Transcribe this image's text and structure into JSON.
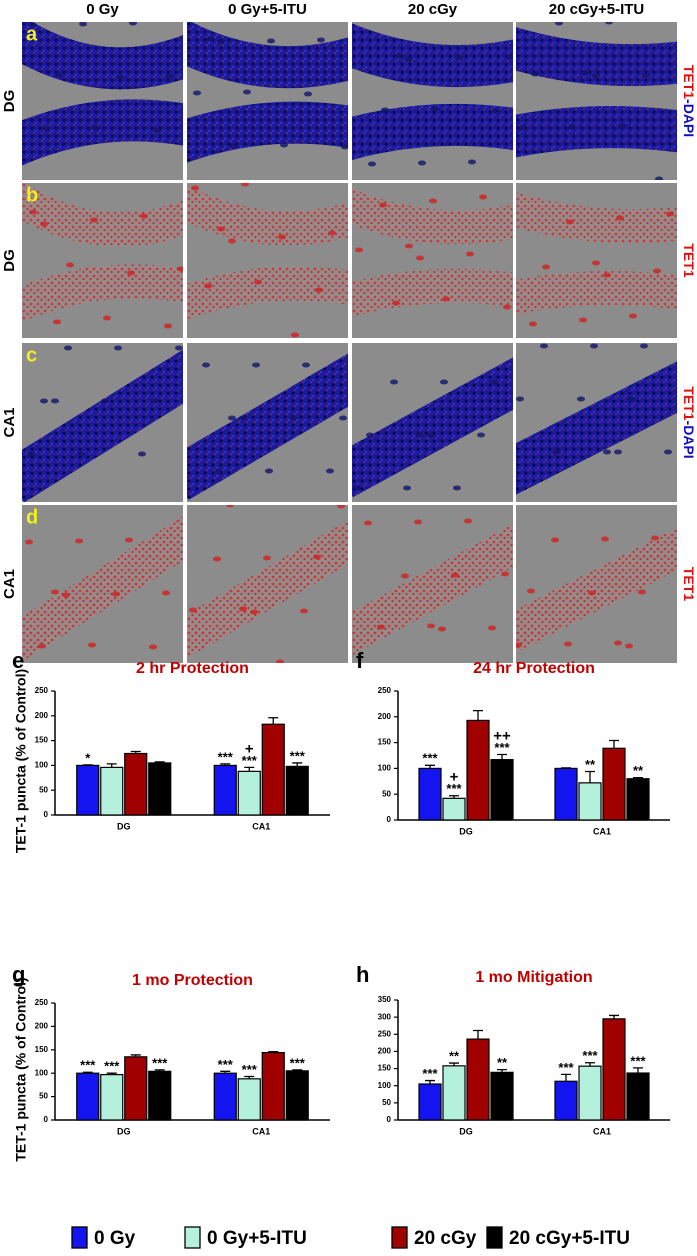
{
  "image_grid": {
    "columns": [
      "0 Gy",
      "0 Gy+5-ITU",
      "20 cGy",
      "20 cGy+5-ITU"
    ],
    "rows": [
      {
        "letter": "a",
        "region": "DG",
        "stain": [
          {
            "text": "TET1",
            "color": "#e01010"
          },
          {
            "text": "-DAPI",
            "color": "#1010c0"
          }
        ]
      },
      {
        "letter": "b",
        "region": "DG",
        "stain": [
          {
            "text": "TET1",
            "color": "#e01010"
          }
        ]
      },
      {
        "letter": "c",
        "region": "CA1",
        "stain": [
          {
            "text": "TET1",
            "color": "#e01010"
          },
          {
            "text": "-DAPI",
            "color": "#1010c0"
          }
        ]
      },
      {
        "letter": "d",
        "region": "CA1",
        "stain": [
          {
            "text": "TET1",
            "color": "#e01010"
          }
        ]
      }
    ]
  },
  "chart_data": [
    {
      "type": "bar",
      "letter": "e",
      "title": "2 hr Protection",
      "ylabel": "TET-1 puncta (% of Control)",
      "categories": [
        "DG",
        "CA1"
      ],
      "ylim": [
        0,
        250
      ],
      "yticks": [
        0,
        50,
        100,
        150,
        200,
        250
      ],
      "series": [
        {
          "name": "0 Gy",
          "color": "#1414f0",
          "values": [
            100,
            100
          ],
          "errors": [
            1,
            3
          ],
          "annotations": [
            [
              "*"
            ],
            [
              "***"
            ]
          ]
        },
        {
          "name": "0 Gy+5-ITU",
          "color": "#b4f0dc",
          "values": [
            96,
            88
          ],
          "errors": [
            7,
            8
          ],
          "annotations": [
            [],
            [
              "+",
              "***"
            ]
          ]
        },
        {
          "name": "20 cGy",
          "color": "#a00000",
          "values": [
            124,
            183
          ],
          "errors": [
            4,
            13
          ],
          "annotations": [
            [],
            []
          ]
        },
        {
          "name": "20 cGy+5-ITU",
          "color": "#000000",
          "values": [
            105,
            98
          ],
          "errors": [
            2,
            7
          ],
          "annotations": [
            [],
            [
              "***"
            ]
          ]
        }
      ]
    },
    {
      "type": "bar",
      "letter": "f",
      "title": "24 hr Protection",
      "categories": [
        "DG",
        "CA1"
      ],
      "ylim": [
        0,
        250
      ],
      "yticks": [
        0,
        50,
        100,
        150,
        200,
        250
      ],
      "series": [
        {
          "color": "#1414f0",
          "values": [
            100,
            100
          ],
          "errors": [
            6,
            1
          ],
          "annotations": [
            [
              "***"
            ],
            []
          ]
        },
        {
          "color": "#b4f0dc",
          "values": [
            42,
            72
          ],
          "errors": [
            5,
            22
          ],
          "annotations": [
            [
              "+",
              "***"
            ],
            [
              "**"
            ]
          ]
        },
        {
          "color": "#a00000",
          "values": [
            193,
            139
          ],
          "errors": [
            19,
            15
          ],
          "annotations": [
            [],
            []
          ]
        },
        {
          "color": "#000000",
          "values": [
            117,
            80
          ],
          "errors": [
            10,
            2
          ],
          "annotations": [
            [
              "++",
              "***"
            ],
            [
              "**"
            ]
          ]
        }
      ]
    },
    {
      "type": "bar",
      "letter": "g",
      "title": "1 mo Protection",
      "ylabel": "TET-1 puncta (% of Control)",
      "categories": [
        "DG",
        "CA1"
      ],
      "ylim": [
        0,
        250
      ],
      "yticks": [
        0,
        50,
        100,
        150,
        200,
        250
      ],
      "series": [
        {
          "color": "#1414f0",
          "values": [
            100,
            100
          ],
          "errors": [
            2,
            4
          ],
          "annotations": [
            [
              "***"
            ],
            [
              "***"
            ]
          ]
        },
        {
          "color": "#b4f0dc",
          "values": [
            97,
            88
          ],
          "errors": [
            3,
            5
          ],
          "annotations": [
            [
              "***"
            ],
            [
              "***"
            ]
          ]
        },
        {
          "color": "#a00000",
          "values": [
            135,
            144
          ],
          "errors": [
            4,
            2
          ],
          "annotations": [
            [],
            []
          ]
        },
        {
          "color": "#000000",
          "values": [
            104,
            105
          ],
          "errors": [
            3,
            2
          ],
          "annotations": [
            [
              "***"
            ],
            [
              "***"
            ]
          ]
        }
      ]
    },
    {
      "type": "bar",
      "letter": "h",
      "title": "1 mo Mitigation",
      "categories": [
        "DG",
        "CA1"
      ],
      "ylim": [
        0,
        350
      ],
      "yticks": [
        0,
        50,
        100,
        150,
        200,
        250,
        300,
        350
      ],
      "series": [
        {
          "color": "#1414f0",
          "values": [
            105,
            113
          ],
          "errors": [
            10,
            20
          ],
          "annotations": [
            [
              "***"
            ],
            [
              "***"
            ]
          ]
        },
        {
          "color": "#b4f0dc",
          "values": [
            158,
            157
          ],
          "errors": [
            8,
            10
          ],
          "annotations": [
            [
              "**"
            ],
            [
              "***"
            ]
          ]
        },
        {
          "color": "#a00000",
          "values": [
            236,
            295
          ],
          "errors": [
            25,
            10
          ],
          "annotations": [
            [],
            []
          ]
        },
        {
          "color": "#000000",
          "values": [
            139,
            137
          ],
          "errors": [
            8,
            15
          ],
          "annotations": [
            [
              "**"
            ],
            [
              "***"
            ]
          ]
        }
      ]
    }
  ]
}
